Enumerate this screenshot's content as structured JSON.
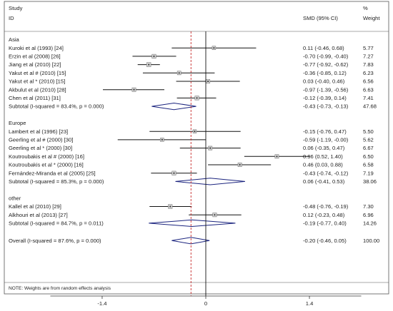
{
  "header": {
    "study": "Study",
    "id": "ID",
    "effect": "SMD (95% CI)",
    "percent": "%",
    "weight": "Weight"
  },
  "footer_note": "NOTE: Weights are from random effects analysis",
  "chart_data": {
    "type": "forest",
    "effect_measure": "SMD",
    "xlim": [
      -2.1,
      2.1
    ],
    "xticks": [
      -1.4,
      0,
      1.4
    ],
    "xtick_labels": [
      "-1.4",
      "0",
      "1.4"
    ],
    "null_line": 0,
    "overall_line": -0.2,
    "colors": {
      "marker": "#777777",
      "diamond": "#1a237e",
      "overall_line": "#c62828",
      "text": "#222222"
    },
    "groups": [
      {
        "name": "Asia",
        "studies": [
          {
            "label": "Kuroki et al (1993) [24]",
            "smd": 0.11,
            "lo": -0.46,
            "hi": 0.68,
            "ci_text": "0.11 (-0.46, 0.68)",
            "weight": 5.77,
            "weight_text": "5.77"
          },
          {
            "label": "Erzin et al (2008) [26]",
            "smd": -0.7,
            "lo": -0.99,
            "hi": -0.4,
            "ci_text": "-0.70 (-0.99, -0.40)",
            "weight": 7.27,
            "weight_text": "7.27"
          },
          {
            "label": "Jiang et al (2010) [22]",
            "smd": -0.77,
            "lo": -0.92,
            "hi": -0.62,
            "ci_text": "-0.77 (-0.92, -0.62)",
            "weight": 7.83,
            "weight_text": "7.83"
          },
          {
            "label": "Yakut et al # (2010) [15]",
            "smd": -0.36,
            "lo": -0.85,
            "hi": 0.12,
            "ci_text": "-0.36 (-0.85, 0.12)",
            "weight": 6.23,
            "weight_text": "6.23"
          },
          {
            "label": "Yakut et al * (2010) [15]",
            "smd": 0.03,
            "lo": -0.4,
            "hi": 0.46,
            "ci_text": "0.03 (-0.40, 0.46)",
            "weight": 6.56,
            "weight_text": "6.56"
          },
          {
            "label": "Akbulut et al (2010) [28]",
            "smd": -0.97,
            "lo": -1.39,
            "hi": -0.56,
            "ci_text": "-0.97 (-1.39, -0.56)",
            "weight": 6.63,
            "weight_text": "6.63"
          },
          {
            "label": "Chen et al (2011) [31]",
            "smd": -0.12,
            "lo": -0.39,
            "hi": 0.14,
            "ci_text": "-0.12 (-0.39, 0.14)",
            "weight": 7.41,
            "weight_text": "7.41"
          }
        ],
        "subtotal": {
          "label": "Subtotal  (I-squared = 83.4%, p = 0.000)",
          "smd": -0.43,
          "lo": -0.73,
          "hi": -0.13,
          "ci_text": "-0.43 (-0.73, -0.13)",
          "weight_text": "47.68"
        }
      },
      {
        "name": "Europe",
        "studies": [
          {
            "label": "Lambert et al (1996) [23]",
            "smd": -0.15,
            "lo": -0.76,
            "hi": 0.47,
            "ci_text": "-0.15 (-0.76, 0.47)",
            "weight": 5.5,
            "weight_text": "5.50"
          },
          {
            "label": "Geerling et al # (2000) [30]",
            "smd": -0.59,
            "lo": -1.19,
            "hi": 0.0,
            "ci_text": "-0.59 (-1.19, -0.00)",
            "weight": 5.62,
            "weight_text": "5.62"
          },
          {
            "label": "Geerling et al * (2000) [30]",
            "smd": 0.06,
            "lo": -0.35,
            "hi": 0.47,
            "ci_text": "0.06 (-0.35, 0.47)",
            "weight": 6.67,
            "weight_text": "6.67"
          },
          {
            "label": "Koutroubakis et al # (2000) [16]",
            "smd": 0.96,
            "lo": 0.52,
            "hi": 1.4,
            "ci_text": "0.96 (0.52, 1.40)",
            "weight": 6.5,
            "weight_text": "6.50"
          },
          {
            "label": "Koutroubakis et al * (2000) [16]",
            "smd": 0.46,
            "lo": 0.03,
            "hi": 0.88,
            "ci_text": "0.46 (0.03, 0.88)",
            "weight": 6.58,
            "weight_text": "6.58"
          },
          {
            "label": "Fernández-Miranda et al (2005) [25]",
            "smd": -0.43,
            "lo": -0.74,
            "hi": -0.12,
            "ci_text": "-0.43 (-0.74, -0.12)",
            "weight": 7.19,
            "weight_text": "7.19"
          }
        ],
        "subtotal": {
          "label": "Subtotal  (I-squared = 85.3%, p = 0.000)",
          "smd": 0.06,
          "lo": -0.41,
          "hi": 0.53,
          "ci_text": "0.06 (-0.41, 0.53)",
          "weight_text": "38.06"
        }
      },
      {
        "name": "other",
        "studies": [
          {
            "label": "Kallel et al (2010) [29]",
            "smd": -0.48,
            "lo": -0.76,
            "hi": -0.19,
            "ci_text": "-0.48 (-0.76, -0.19)",
            "weight": 7.3,
            "weight_text": "7.30"
          },
          {
            "label": "Alkhouri et al (2013) [27]",
            "smd": 0.12,
            "lo": -0.23,
            "hi": 0.48,
            "ci_text": "0.12 (-0.23, 0.48)",
            "weight": 6.96,
            "weight_text": "6.96"
          }
        ],
        "subtotal": {
          "label": "Subtotal  (I-squared = 84.7%, p = 0.011)",
          "smd": -0.19,
          "lo": -0.77,
          "hi": 0.4,
          "ci_text": "-0.19 (-0.77, 0.40)",
          "weight_text": "14.26"
        }
      }
    ],
    "overall": {
      "label": "Overall  (I-squared = 87.6%, p = 0.000)",
      "smd": -0.2,
      "lo": -0.46,
      "hi": 0.05,
      "ci_text": "-0.20 (-0.46, 0.05)",
      "weight_text": "100.00"
    }
  }
}
